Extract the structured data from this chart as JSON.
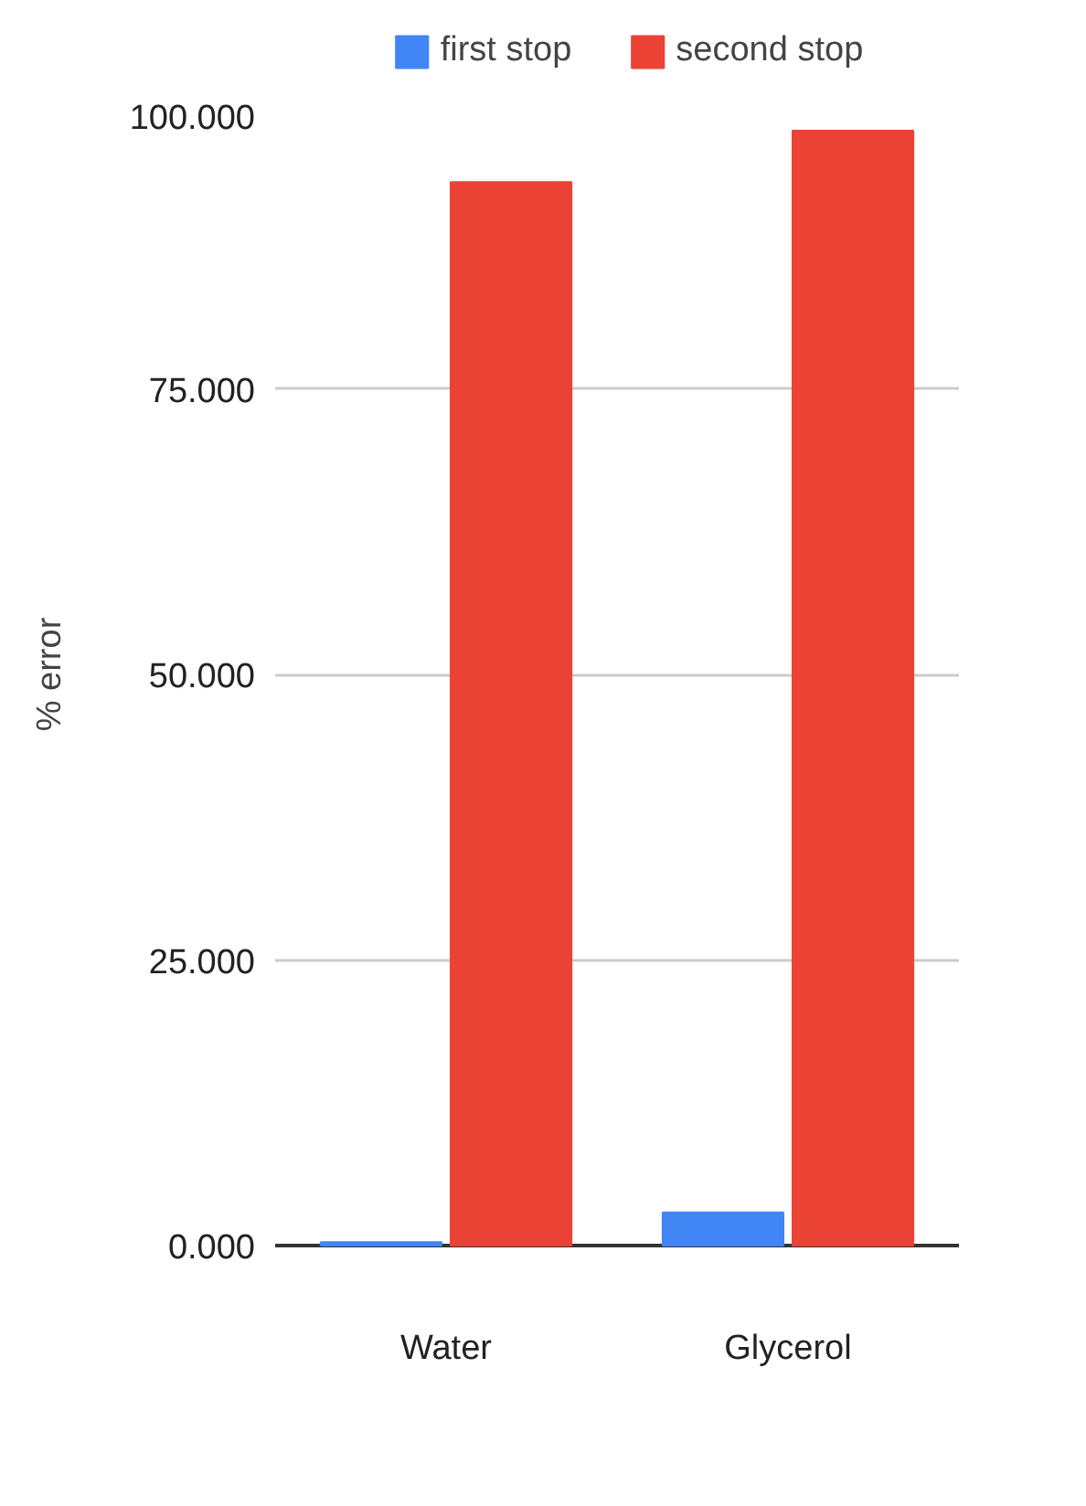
{
  "chart_data": {
    "type": "bar",
    "ylabel": "% error",
    "categories": [
      "Water",
      "Glycerol"
    ],
    "series": [
      {
        "name": "first stop",
        "color": "#4285f4",
        "values": [
          0.3,
          2.9
        ]
      },
      {
        "name": "second stop",
        "color": "#ea4335",
        "values": [
          93.1,
          97.6
        ]
      }
    ],
    "ylim": [
      0,
      100
    ],
    "yticks": [
      {
        "value": 0,
        "label": "0.000"
      },
      {
        "value": 25,
        "label": "25.000"
      },
      {
        "value": 50,
        "label": "50.000"
      },
      {
        "value": 75,
        "label": "75.000"
      },
      {
        "value": 100,
        "label": "100.000"
      }
    ],
    "grid": "y",
    "legend": "top"
  }
}
